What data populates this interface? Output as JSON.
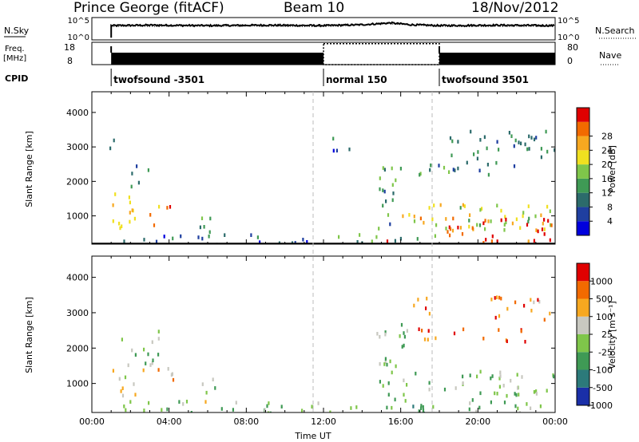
{
  "header": {
    "station": "Prince George (fitACF)",
    "beam": "Beam 10",
    "date": "18/Nov/2012"
  },
  "chart_data": [
    {
      "type": "line",
      "panel": "noise",
      "left_label": "N.Sky",
      "right_label": "N.Search",
      "y_ticks_left": [
        "10^5",
        "10^0"
      ],
      "y_ticks_right": [
        "10^5",
        "10^0"
      ],
      "x_range": [
        "00:00",
        "24:00"
      ],
      "series": [
        {
          "style": "solid",
          "start": "01:00",
          "x": [
            "01:00",
            "03:00",
            "06:00",
            "09:00",
            "12:00",
            "14:00",
            "15:30",
            "16:30",
            "18:00",
            "21:00",
            "24:00"
          ],
          "values": [
            3.2,
            3.3,
            3.2,
            3.3,
            3.2,
            3.4,
            3.8,
            3.4,
            3.2,
            3.3,
            3.2
          ]
        },
        {
          "style": "dotted",
          "start": "01:00",
          "x": [
            "01:00",
            "06:00",
            "12:00",
            "15:30",
            "18:00",
            "24:00"
          ],
          "values": [
            3.0,
            3.1,
            3.0,
            3.6,
            3.0,
            3.0
          ]
        }
      ]
    },
    {
      "type": "bar",
      "panel": "frequency",
      "left_label": "Freq.",
      "left_unit": "[MHz]",
      "right_label": "Nave",
      "y_ticks_left": [
        "18",
        "8"
      ],
      "y_ticks_right": [
        "80",
        "0"
      ],
      "freq_segments": [
        {
          "start": "01:00",
          "end": "12:00"
        },
        {
          "start": "18:00",
          "end": "24:00"
        }
      ],
      "nave_segment": {
        "start": "12:00",
        "end": "18:00",
        "value": 75
      }
    },
    {
      "type": "table",
      "panel": "cpid",
      "label": "CPID",
      "segments": [
        {
          "start": "01:00",
          "end": "12:00",
          "label": "twofsound -3501"
        },
        {
          "start": "12:00",
          "end": "18:00",
          "label": "normal 150"
        },
        {
          "start": "18:00",
          "end": "24:00",
          "label": "twofsound 3501"
        }
      ]
    },
    {
      "type": "heatmap",
      "panel": "power",
      "ylabel": "Slant Range [km]",
      "y_ticks": [
        "1000",
        "2000",
        "3000",
        "4000"
      ],
      "ylim": [
        180,
        4600
      ],
      "xlim": [
        0,
        24
      ],
      "colorbar_title": "Power [dB]",
      "colorbar_ticks": [
        "4",
        "8",
        "12",
        "16",
        "20",
        "24",
        "28"
      ],
      "colors": [
        "#0000dd",
        "#1f3fa0",
        "#2c6b6b",
        "#3f9a55",
        "#7fc64a",
        "#f0e020",
        "#f7a820",
        "#f26a00",
        "#e00000"
      ],
      "regions": [
        {
          "t": [
            1.0,
            2.0
          ],
          "r": [
            600,
            1700
          ],
          "v": 0.55
        },
        {
          "t": [
            1.5,
            3.5
          ],
          "r": [
            700,
            1400
          ],
          "v": 0.7
        },
        {
          "t": [
            3.0,
            4.2
          ],
          "r": [
            1050,
            1350
          ],
          "v": 0.9
        },
        {
          "t": [
            2.0,
            3.0
          ],
          "r": [
            1900,
            2600
          ],
          "v": 0.35
        },
        {
          "t": [
            0.9,
            1.3
          ],
          "r": [
            2900,
            3400
          ],
          "v": 0.3
        },
        {
          "t": [
            5.5,
            6.5
          ],
          "r": [
            500,
            1300
          ],
          "v": 0.4
        },
        {
          "t": [
            1.5,
            12.0
          ],
          "r": [
            200,
            550
          ],
          "v": 0.25
        },
        {
          "t": [
            12.0,
            18.0
          ],
          "r": [
            200,
            520
          ],
          "v": 0.4
        },
        {
          "t": [
            14.5,
            16.0
          ],
          "r": [
            300,
            500
          ],
          "v": 0.85
        },
        {
          "t": [
            14.8,
            16.0
          ],
          "r": [
            600,
            2500
          ],
          "v": 0.35
        },
        {
          "t": [
            16.0,
            24.0
          ],
          "r": [
            600,
            1400
          ],
          "v": 0.6
        },
        {
          "t": [
            16.5,
            24.0
          ],
          "r": [
            700,
            1000
          ],
          "v": 0.9
        },
        {
          "t": [
            18.3,
            23.8
          ],
          "r": [
            200,
            800
          ],
          "v": 0.92
        },
        {
          "t": [
            16.5,
            22.5
          ],
          "r": [
            2200,
            2600
          ],
          "v": 0.35
        },
        {
          "t": [
            18.5,
            24.0
          ],
          "r": [
            2700,
            3500
          ],
          "v": 0.3
        },
        {
          "t": [
            12.0,
            13.5
          ],
          "r": [
            2900,
            3300
          ],
          "v": 0.25
        }
      ]
    },
    {
      "type": "heatmap",
      "panel": "velocity",
      "ylabel": "Slant Range [km]",
      "xlabel": "Time UT",
      "y_ticks": [
        "1000",
        "2000",
        "3000",
        "4000"
      ],
      "ylim": [
        180,
        4600
      ],
      "xlim": [
        0,
        24
      ],
      "x_ticks": [
        "00:00",
        "04:00",
        "08:00",
        "12:00",
        "16:00",
        "20:00",
        "00:00"
      ],
      "colorbar_title": "Velocity [m s⁻¹]",
      "colorbar_ticks": [
        "1000",
        "500",
        "100",
        "25",
        "-25",
        "-100",
        "-500",
        "-1000"
      ],
      "colors": [
        "#1a2fa8",
        "#2c7a7a",
        "#3f9a55",
        "#7fc64a",
        "#c8c8c0",
        "#f7a820",
        "#f26a00",
        "#e00000"
      ],
      "regions": [
        {
          "t": [
            1.0,
            2.5
          ],
          "r": [
            550,
            1700
          ],
          "v": 0.55
        },
        {
          "t": [
            2.0,
            4.2
          ],
          "r": [
            900,
            1500
          ],
          "v": 0.7
        },
        {
          "t": [
            1.2,
            3.5
          ],
          "r": [
            1500,
            2600
          ],
          "v": 0.45
        },
        {
          "t": [
            5.5,
            6.5
          ],
          "r": [
            500,
            1300
          ],
          "v": 0.5
        },
        {
          "t": [
            1.5,
            12.0
          ],
          "r": [
            200,
            550
          ],
          "v": 0.4
        },
        {
          "t": [
            12.0,
            18.0
          ],
          "r": [
            200,
            520
          ],
          "v": 0.3
        },
        {
          "t": [
            14.6,
            16.3
          ],
          "r": [
            500,
            2800
          ],
          "v": 0.45
        },
        {
          "t": [
            16.0,
            24.0
          ],
          "r": [
            700,
            1400
          ],
          "v": 0.45
        },
        {
          "t": [
            16.5,
            22.5
          ],
          "r": [
            2200,
            2600
          ],
          "v": 0.82
        },
        {
          "t": [
            16.5,
            17.5
          ],
          "r": [
            2800,
            3500
          ],
          "v": 0.8
        },
        {
          "t": [
            20.5,
            24.0
          ],
          "r": [
            2800,
            3500
          ],
          "v": 0.78
        },
        {
          "t": [
            19.5,
            23.8
          ],
          "r": [
            200,
            600
          ],
          "v": 0.4
        }
      ]
    }
  ]
}
